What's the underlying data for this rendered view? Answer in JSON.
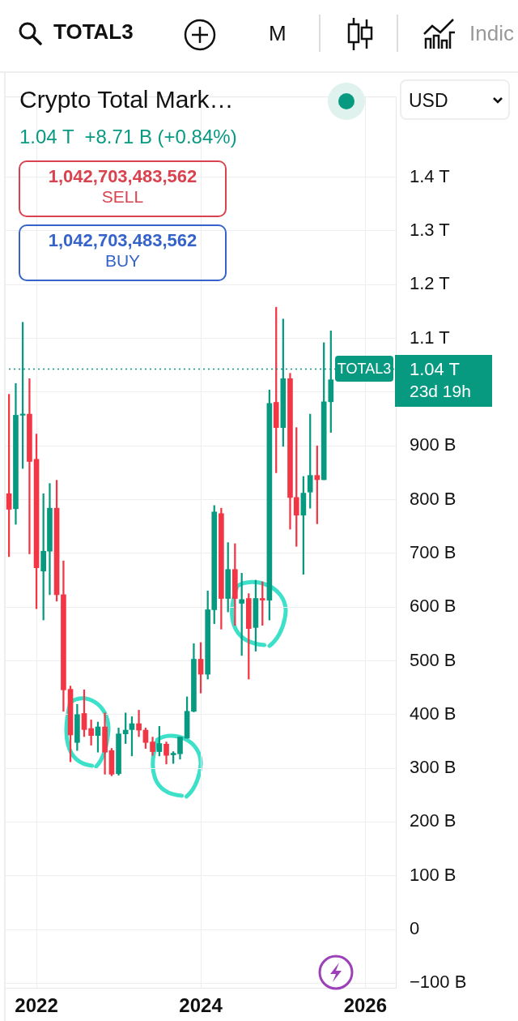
{
  "chart_data": {
    "type": "candlestick",
    "title": "Crypto Total Mark…",
    "subtitle": "1.04 T  +8.71 B (+0.84%)",
    "x": [
      "2021-09",
      "2021-10",
      "2021-11",
      "2021-12",
      "2022-01",
      "2022-02",
      "2022-03",
      "2022-04",
      "2022-05",
      "2022-06",
      "2022-07",
      "2022-08",
      "2022-09",
      "2022-10",
      "2022-11",
      "2022-12",
      "2023-01",
      "2023-02",
      "2023-03",
      "2023-04",
      "2023-05",
      "2023-06",
      "2023-07",
      "2023-08",
      "2023-09",
      "2023-10",
      "2023-11",
      "2023-12",
      "2024-01",
      "2024-02",
      "2024-03",
      "2024-04",
      "2024-05",
      "2024-06",
      "2024-07",
      "2024-08",
      "2024-09",
      "2024-10",
      "2024-11",
      "2024-12",
      "2025-01",
      "2025-02",
      "2025-03",
      "2025-04",
      "2025-05",
      "2025-06",
      "2025-07",
      "2025-08"
    ],
    "ohlc": [
      [
        811000000000.0,
        996000000000.0,
        694000000000.0,
        782000000000.0
      ],
      [
        783000000000.0,
        1016000000000.0,
        754000000000.0,
        957000000000.0
      ],
      [
        957000000000.0,
        1130000000000.0,
        858000000000.0,
        959000000000.0
      ],
      [
        959000000000.0,
        1025000000000.0,
        699000000000.0,
        871000000000.0
      ],
      [
        875000000000.0,
        922000000000.0,
        597000000000.0,
        673000000000.0
      ],
      [
        667000000000.0,
        811000000000.0,
        576000000000.0,
        704000000000.0
      ],
      [
        704000000000.0,
        830000000000.0,
        623000000000.0,
        784000000000.0
      ],
      [
        784000000000.0,
        836000000000.0,
        611000000000.0,
        623000000000.0
      ],
      [
        623000000000.0,
        686000000000.0,
        406000000000.0,
        446000000000.0
      ],
      [
        447000000000.0,
        453000000000.0,
        312000000000.0,
        362000000000.0
      ],
      [
        348000000000.0,
        419000000000.0,
        333000000000.0,
        400000000000.0
      ],
      [
        402000000000.0,
        446000000000.0,
        359000000000.0,
        372000000000.0
      ],
      [
        374000000000.0,
        390000000000.0,
        343000000000.0,
        361000000000.0
      ],
      [
        361000000000.0,
        386000000000.0,
        330000000000.0,
        377000000000.0
      ],
      [
        377000000000.0,
        403000000000.0,
        289000000000.0,
        330000000000.0
      ],
      [
        333000000000.0,
        337000000000.0,
        286000000000.0,
        289000000000.0
      ],
      [
        290000000000.0,
        375000000000.0,
        287000000000.0,
        364000000000.0
      ],
      [
        364000000000.0,
        403000000000.0,
        346000000000.0,
        371000000000.0
      ],
      [
        372000000000.0,
        396000000000.0,
        323000000000.0,
        383000000000.0
      ],
      [
        383000000000.0,
        408000000000.0,
        359000000000.0,
        371000000000.0
      ],
      [
        371000000000.0,
        375000000000.0,
        337000000000.0,
        348000000000.0
      ],
      [
        349000000000.0,
        358000000000.0,
        324000000000.0,
        331000000000.0
      ],
      [
        331000000000.0,
        378000000000.0,
        323000000000.0,
        346000000000.0
      ],
      [
        345000000000.0,
        349000000000.0,
        308000000000.0,
        324000000000.0
      ],
      [
        325000000000.0,
        331000000000.0,
        309000000000.0,
        328000000000.0
      ],
      [
        327000000000.0,
        358000000000.0,
        317000000000.0,
        358000000000.0
      ],
      [
        356000000000.0,
        433000000000.0,
        356000000000.0,
        406000000000.0
      ],
      [
        406000000000.0,
        532000000000.0,
        405000000000.0,
        503000000000.0
      ],
      [
        503000000000.0,
        534000000000.0,
        440000000000.0,
        475000000000.0
      ],
      [
        475000000000.0,
        630000000000.0,
        466000000000.0,
        595000000000.0
      ],
      [
        595000000000.0,
        789000000000.0,
        569000000000.0,
        777000000000.0
      ],
      [
        774000000000.0,
        784000000000.0,
        559000000000.0,
        616000000000.0
      ],
      [
        616000000000.0,
        720000000000.0,
        591000000000.0,
        670000000000.0
      ],
      [
        670000000000.0,
        718000000000.0,
        566000000000.0,
        616000000000.0
      ],
      [
        607000000000.0,
        663000000000.0,
        510000000000.0,
        614000000000.0
      ],
      [
        616000000000.0,
        625000000000.0,
        466000000000.0,
        560000000000.0
      ],
      [
        562000000000.0,
        650000000000.0,
        518000000000.0,
        616000000000.0
      ],
      [
        616000000000.0,
        647000000000.0,
        566000000000.0,
        613000000000.0
      ],
      [
        613000000000.0,
        1004000000000.0,
        576000000000.0,
        979000000000.0
      ],
      [
        981000000000.0,
        1158000000000.0,
        850000000000.0,
        934000000000.0
      ],
      [
        934000000000.0,
        1136000000000.0,
        899000000000.0,
        1025000000000.0
      ],
      [
        1025000000000.0,
        1035000000000.0,
        745000000000.0,
        804000000000.0
      ],
      [
        804000000000.0,
        934000000000.0,
        713000000000.0,
        771000000000.0
      ],
      [
        771000000000.0,
        843000000000.0,
        661000000000.0,
        812000000000.0
      ],
      [
        814000000000.0,
        959000000000.0,
        784000000000.0,
        845000000000.0
      ],
      [
        845000000000.0,
        900000000000.0,
        755000000000.0,
        837000000000.0
      ],
      [
        837000000000.0,
        1092000000000.0,
        837000000000.0,
        982000000000.0
      ],
      [
        982000000000.0,
        1114000000000.0,
        925000000000.0,
        1023000000000.0
      ]
    ],
    "xlim": [
      "2021-08-10",
      "2026-05-20"
    ],
    "xticks": [
      "2022",
      "2024",
      "2026"
    ],
    "ylim": [
      -110000000000.0,
      1550000000000.0
    ],
    "yticks": [
      {
        "value": -100000000000.0,
        "label": "−100 B"
      },
      {
        "value": 0,
        "label": "0"
      },
      {
        "value": 100000000000.0,
        "label": "100 B"
      },
      {
        "value": 200000000000.0,
        "label": "200 B"
      },
      {
        "value": 300000000000.0,
        "label": "300 B"
      },
      {
        "value": 400000000000.0,
        "label": "400 B"
      },
      {
        "value": 500000000000.0,
        "label": "500 B"
      },
      {
        "value": 600000000000.0,
        "label": "600 B"
      },
      {
        "value": 700000000000.0,
        "label": "700 B"
      },
      {
        "value": 800000000000.0,
        "label": "800 B"
      },
      {
        "value": 900000000000.0,
        "label": "900 B"
      },
      {
        "value": 1000000000000.0,
        "label": null
      },
      {
        "value": 1100000000000.0,
        "label": "1.1 T"
      },
      {
        "value": 1200000000000.0,
        "label": "1.2 T"
      },
      {
        "value": 1300000000000.0,
        "label": "1.3 T"
      },
      {
        "value": 1400000000000.0,
        "label": "1.4 T"
      }
    ],
    "ref_lines": [
      {
        "axis": "y",
        "value": 1043000000000.0,
        "label": "1.04 T",
        "color": "#089981",
        "line_style": "dotted"
      }
    ],
    "grid": true,
    "annotations": [
      "TOTAL3",
      "M",
      "Indic",
      "1,042,703,483,562",
      "SELL",
      "1,042,703,483,562",
      "BUY",
      "USD",
      "TOTAL3",
      "23d 19h"
    ]
  }
}
